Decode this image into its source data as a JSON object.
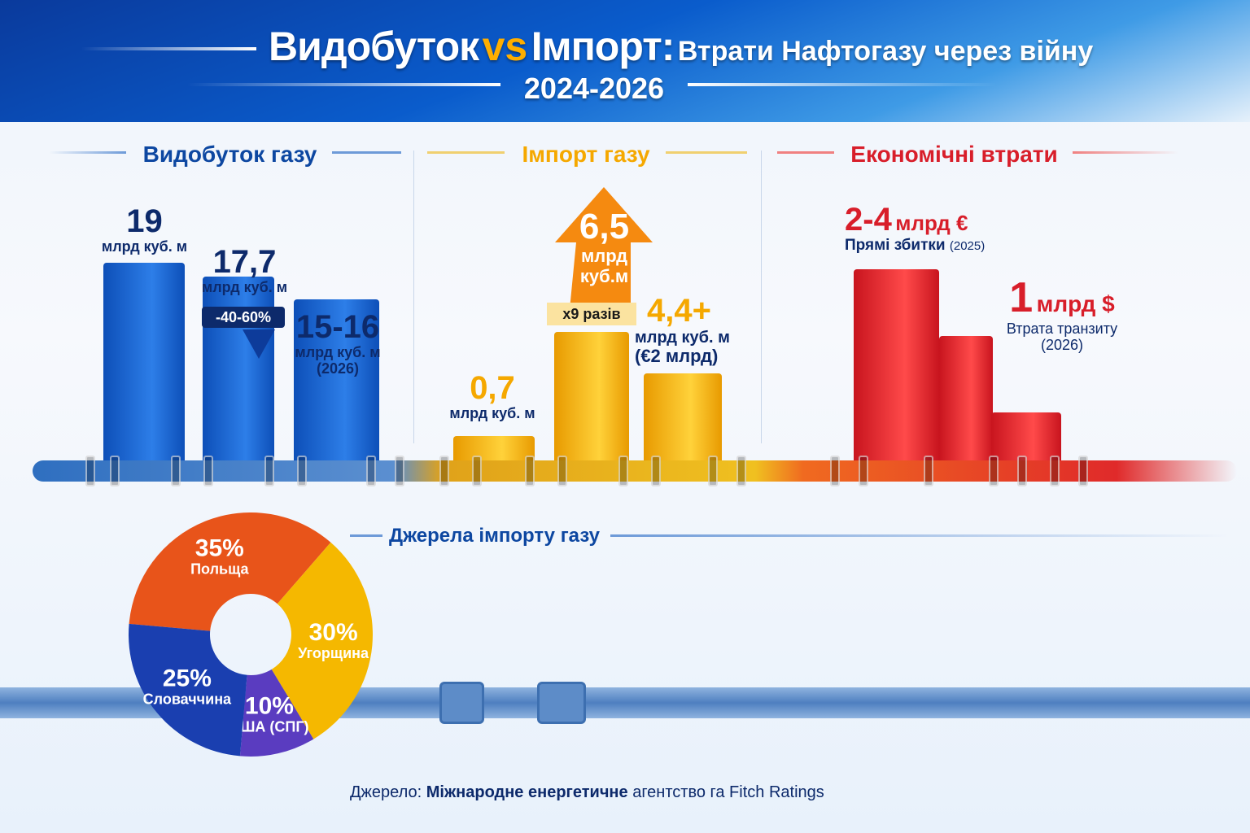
{
  "header": {
    "title_part1": "Видобуток",
    "title_vs": "vs",
    "title_part2": "Імпорт:",
    "title_part3": "Втрати Нафтогазу через війну",
    "years": "2024-2026"
  },
  "sections": {
    "production": "Видобуток газу",
    "import": "Імпорт газу",
    "losses": "Економічні втрати",
    "sources": "Джерела імпорту газу"
  },
  "colors": {
    "production": "#1565d0",
    "import": "#f5b800",
    "losses": "#e02a2a",
    "title_blue": "#0d47a1"
  },
  "chart_data": [
    {
      "type": "bar",
      "title": "Видобуток газу",
      "unit": "млрд куб. м",
      "categories": [
        "",
        "",
        ""
      ],
      "values": [
        19,
        17.7,
        15.5
      ],
      "labels": [
        {
          "value": "19",
          "unit": "млрд куб. м"
        },
        {
          "value": "17,7",
          "unit": "млрд куб. м"
        },
        {
          "value": "15-16",
          "unit": "млрд куб. м",
          "note": "(2026)"
        }
      ],
      "annotation": "-40-60%"
    },
    {
      "type": "bar",
      "title": "Імпорт газу",
      "categories": [
        "",
        "",
        ""
      ],
      "values": [
        0.7,
        6.5,
        4.4
      ],
      "labels": [
        {
          "value": "0,7",
          "unit": "млрд куб. м"
        },
        {
          "value": "6,5",
          "unit": "млрд куб.м"
        },
        {
          "value": "4,4+",
          "unit": "млрд куб. м",
          "note": "(€2 млрд)"
        }
      ],
      "annotation": "x9 разів"
    },
    {
      "type": "bar",
      "title": "Економічні втрати",
      "categories": [
        "",
        "",
        ""
      ],
      "values": [
        4,
        2.6,
        1
      ],
      "labels": [
        {
          "value": "2-4",
          "unit": "млрд €",
          "desc": "Прямі збитки",
          "note": "(2025)"
        },
        {
          "value": "1",
          "unit": "млрд $",
          "desc": "Втрата транзиту",
          "note": "(2026)"
        }
      ]
    },
    {
      "type": "pie",
      "title": "Джерела імпорту газу",
      "donut": true,
      "slices": [
        {
          "label": "Польща",
          "value": 35,
          "pct": "35%",
          "color": "#e8541a"
        },
        {
          "label": "Угорщина",
          "value": 30,
          "pct": "30%",
          "color": "#f5b800"
        },
        {
          "label": "США (СПГ)",
          "value": 10,
          "pct": "10%",
          "color": "#5a3cc0"
        },
        {
          "label": "Словаччина",
          "value": 25,
          "pct": "25%",
          "color": "#1a3fb0"
        }
      ]
    }
  ],
  "footer": {
    "prefix": "Джерело:",
    "bold": "Міжнародне енергетичне",
    "rest": "агентство га Fitch Ratings"
  }
}
